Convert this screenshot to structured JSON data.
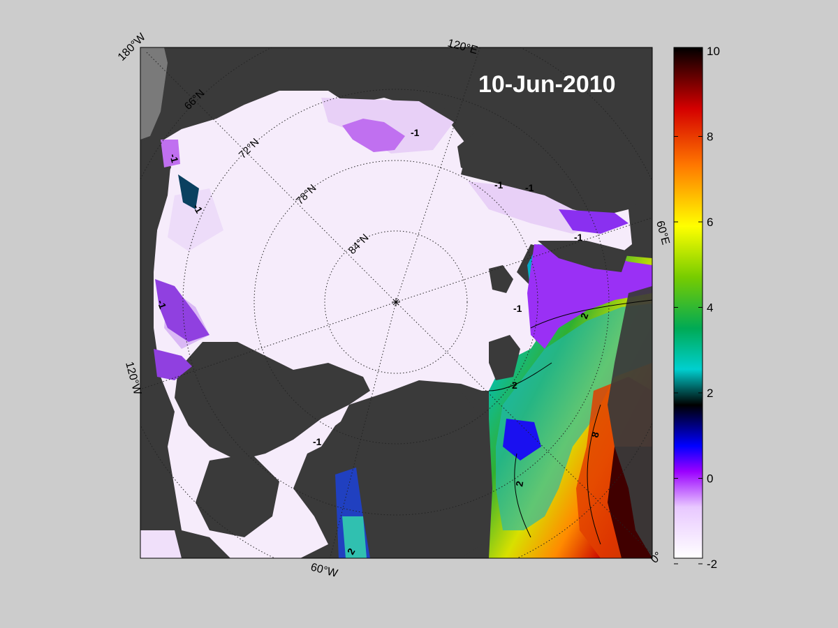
{
  "map": {
    "date_label": "10-Jun-2010",
    "longitude_labels": [
      "180°W",
      "120°E",
      "60°E",
      "0°",
      "60°W",
      "120°W"
    ],
    "latitude_labels": [
      "66°N",
      "72°N",
      "78°N",
      "84°N"
    ],
    "contour_labels": {
      "minus1": "-1",
      "two": "2",
      "eight": "8"
    },
    "colors": {
      "background": "#cccccc",
      "land": "#3a3a3a",
      "land_light": "#7a7a7a",
      "ice_pale": "#f6ecfb",
      "ice_lilac": "#e8d0f7",
      "ice_purple": "#c070f0"
    }
  },
  "colorbar": {
    "ticks": [
      "10",
      "8",
      "6",
      "4",
      "2",
      "0",
      "-2"
    ],
    "range": [
      -2,
      10
    ],
    "stops": [
      "#ffffff",
      "#e8c8ff",
      "#9a00ff",
      "#0000ff",
      "#000000",
      "#00cfcf",
      "#00aa55",
      "#77cc00",
      "#ffff00",
      "#ff7700",
      "#d40000",
      "#000000"
    ]
  }
}
